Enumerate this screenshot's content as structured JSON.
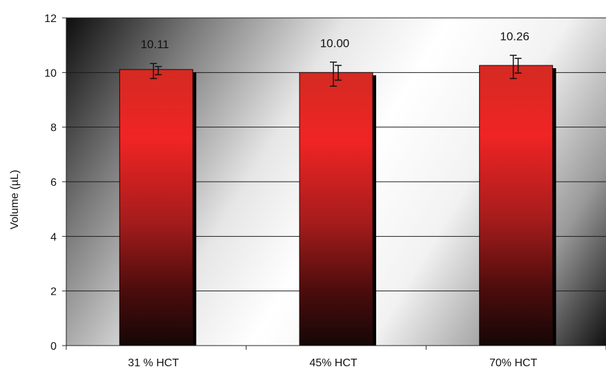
{
  "chart_data": {
    "type": "bar",
    "categories": [
      "31 % HCT",
      "45% HCT",
      "70% HCT"
    ],
    "values": [
      10.11,
      10.0,
      10.26
    ],
    "value_labels": [
      "10.11",
      "10.00",
      "10.26"
    ],
    "error_bars": {
      "outer": [
        [
          9.78,
          10.33
        ],
        [
          9.5,
          10.38
        ],
        [
          9.78,
          10.63
        ]
      ],
      "inner": [
        [
          9.92,
          10.22
        ],
        [
          9.72,
          10.26
        ],
        [
          9.98,
          10.52
        ]
      ]
    },
    "title": "",
    "xlabel": "",
    "ylabel": "Volume (µL)",
    "ylim": [
      0,
      12
    ],
    "yticks": [
      0,
      2,
      4,
      6,
      8,
      10,
      12
    ],
    "ytick_labels": [
      "0",
      "2",
      "4",
      "6",
      "8",
      "10",
      "12"
    ],
    "grid": true,
    "legend": "none",
    "colors": {
      "bar_top": "#d42a22",
      "bar_mid": "#f02424",
      "bar_bottom": "#150707",
      "bar_shadow": "#000000",
      "grid": "#1a1a1a",
      "plot_dark": "#111111",
      "plot_light": "#ffffff"
    }
  }
}
